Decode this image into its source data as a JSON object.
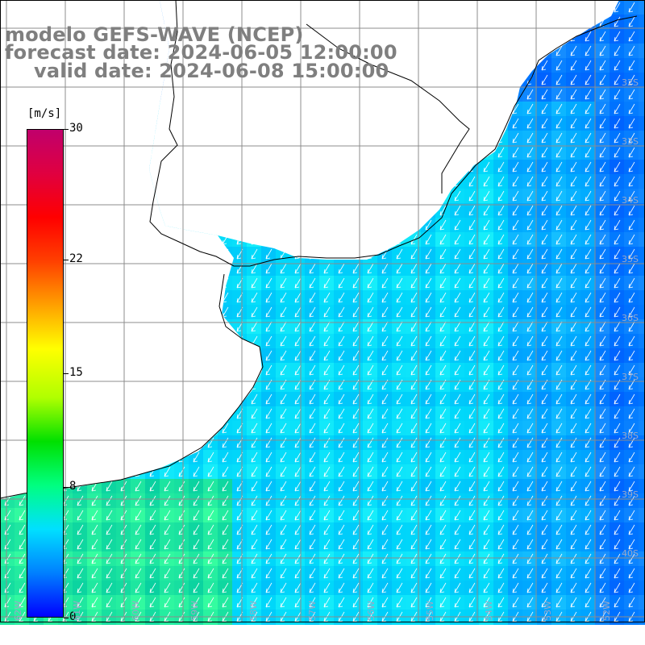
{
  "title": {
    "model": "modelo GEFS-WAVE (NCEP)",
    "forecast": "forecast date: 2024-06-05 12:00:00",
    "valid": "valid date: 2024-06-08 15:00:00"
  },
  "colorbar": {
    "units": "[m/s]",
    "min": 0,
    "max": 30,
    "ticks": [
      "30",
      "22",
      "15",
      "8",
      "0"
    ],
    "tick_values": [
      30,
      22,
      15,
      8,
      0
    ],
    "palette": [
      "#0000ff",
      "#0080ff",
      "#00e0ff",
      "#00ff80",
      "#00e000",
      "#b0ff00",
      "#ffff00",
      "#ffa000",
      "#ff4000",
      "#ff0000",
      "#e00040",
      "#c0006c"
    ]
  },
  "map": {
    "land_color": "#ffffff",
    "coastline_color": "#000000",
    "grid_color": "#8c8c8c",
    "arrow_color": "#ffffff",
    "wind_direction": "from north-east",
    "lat_labels": [
      "32S",
      "33S",
      "34S",
      "35S",
      "36S",
      "37S",
      "38S",
      "39S",
      "40S"
    ],
    "lon_labels": [
      "62W",
      "61W",
      "60W",
      "59W",
      "58W",
      "57W",
      "56W",
      "55W",
      "54W",
      "53W",
      "52W",
      "51W"
    ]
  }
}
